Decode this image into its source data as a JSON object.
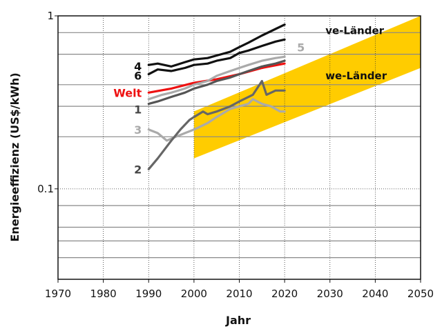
{
  "chart_data": {
    "type": "line",
    "title": "",
    "xlabel": "Jahr",
    "ylabel": "Energieeffizienz (US$/kWh)",
    "xlim": [
      1970,
      2050
    ],
    "ylim": [
      0.03,
      1
    ],
    "y_scale": "log",
    "x_ticks": [
      "1970",
      "1980",
      "1990",
      "2000",
      "2010",
      "2020",
      "2030",
      "2040",
      "2050"
    ],
    "y_ticks": [
      {
        "value": 1,
        "label": "1"
      },
      {
        "value": 0.1,
        "label": "0.1"
      }
    ],
    "grid": {
      "vertical": true,
      "horizontal_major": "dotted",
      "horizontal_minor": "solid"
    },
    "regions": [
      {
        "label": "ve-Länder",
        "color": "#FFCC00",
        "x": [
          2000,
          2050
        ],
        "lower": [
          0.15,
          0.5
        ],
        "upper": [
          0.28,
          1.0
        ]
      },
      {
        "label": "we-Länder",
        "color": "#FFCC00",
        "x": [
          2000,
          2050
        ],
        "lower": [
          0.15,
          0.5
        ],
        "upper": [
          0.28,
          1.0
        ]
      }
    ],
    "series": [
      {
        "name": "4",
        "color": "#111111",
        "x": [
          1990,
          1992,
          1995,
          1998,
          2000,
          2003,
          2005,
          2008,
          2010,
          2012,
          2015,
          2018,
          2020
        ],
        "values": [
          0.52,
          0.53,
          0.51,
          0.54,
          0.56,
          0.57,
          0.59,
          0.62,
          0.66,
          0.7,
          0.77,
          0.84,
          0.89
        ]
      },
      {
        "name": "6",
        "color": "#111111",
        "x": [
          1990,
          1992,
          1995,
          1998,
          2000,
          2003,
          2005,
          2008,
          2010,
          2012,
          2015,
          2018,
          2020
        ],
        "values": [
          0.46,
          0.49,
          0.48,
          0.5,
          0.52,
          0.53,
          0.55,
          0.57,
          0.61,
          0.63,
          0.67,
          0.71,
          0.73
        ]
      },
      {
        "name": "Welt",
        "color": "#ee1111",
        "x": [
          1990,
          1995,
          2000,
          2005,
          2010,
          2015,
          2020
        ],
        "values": [
          0.36,
          0.38,
          0.41,
          0.43,
          0.46,
          0.5,
          0.53
        ]
      },
      {
        "name": "1",
        "color": "#555555",
        "x": [
          1990,
          1992,
          1995,
          1998,
          2000,
          2003,
          2005,
          2008,
          2010,
          2012,
          2015,
          2018,
          2020
        ],
        "values": [
          0.31,
          0.32,
          0.34,
          0.36,
          0.38,
          0.4,
          0.42,
          0.44,
          0.46,
          0.48,
          0.51,
          0.53,
          0.55
        ]
      },
      {
        "name": "5",
        "color": "#aaaaaa",
        "x": [
          1990,
          1993,
          1995,
          1998,
          2000,
          2003,
          2005,
          2008,
          2010,
          2012,
          2015,
          2018,
          2020
        ],
        "values": [
          0.33,
          0.35,
          0.36,
          0.38,
          0.4,
          0.42,
          0.45,
          0.48,
          0.5,
          0.52,
          0.55,
          0.57,
          0.58
        ]
      },
      {
        "name": "3",
        "color": "#aaaaaa",
        "x": [
          1990,
          1992,
          1994,
          1996,
          1998,
          2000,
          2003,
          2005,
          2008,
          2010,
          2012,
          2013,
          2015,
          2017,
          2019,
          2020
        ],
        "values": [
          0.22,
          0.21,
          0.19,
          0.2,
          0.21,
          0.22,
          0.24,
          0.26,
          0.29,
          0.3,
          0.31,
          0.33,
          0.31,
          0.3,
          0.28,
          0.28
        ]
      },
      {
        "name": "2",
        "color": "#666666",
        "x": [
          1990,
          1992,
          1995,
          1997,
          1999,
          2000,
          2002,
          2003,
          2005,
          2008,
          2010,
          2013,
          2015,
          2016,
          2018,
          2020
        ],
        "values": [
          0.13,
          0.15,
          0.19,
          0.22,
          0.25,
          0.26,
          0.28,
          0.27,
          0.28,
          0.3,
          0.32,
          0.35,
          0.42,
          0.35,
          0.37,
          0.37
        ]
      }
    ]
  }
}
